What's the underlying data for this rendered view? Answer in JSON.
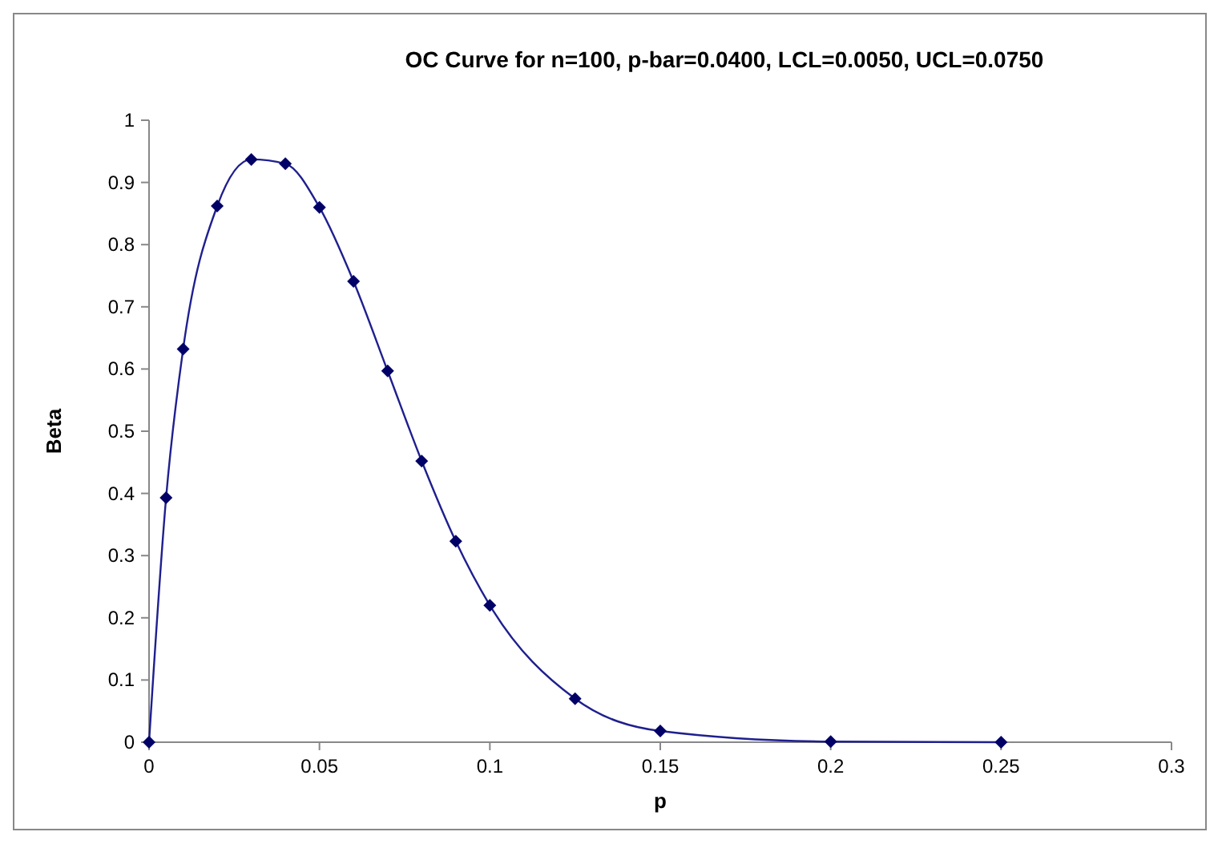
{
  "chart_data": {
    "type": "line",
    "title": "OC Curve for n=100, p-bar=0.0400, LCL=0.0050, UCL=0.0750",
    "xlabel": "p",
    "ylabel": "Beta",
    "x": [
      0,
      0.005,
      0.01,
      0.02,
      0.03,
      0.04,
      0.05,
      0.06,
      0.07,
      0.08,
      0.09,
      0.1,
      0.125,
      0.15,
      0.2,
      0.25
    ],
    "series": [
      {
        "color": "#1f1f8f",
        "values": [
          0,
          0.393,
          0.632,
          0.862,
          0.937,
          0.93,
          0.86,
          0.741,
          0.597,
          0.452,
          0.323,
          0.22,
          0.07,
          0.018,
          0.001,
          0
        ]
      }
    ],
    "xlim": [
      0,
      0.3
    ],
    "xticks": [
      0,
      0.05,
      0.1,
      0.15,
      0.2,
      0.25,
      0.3
    ],
    "ylim": [
      0,
      1
    ],
    "yticks": [
      0,
      0.1,
      0.2,
      0.3,
      0.4,
      0.5,
      0.6,
      0.7,
      0.8,
      0.9,
      1
    ],
    "grid": false,
    "marker": "diamond",
    "line_style": "solid"
  }
}
